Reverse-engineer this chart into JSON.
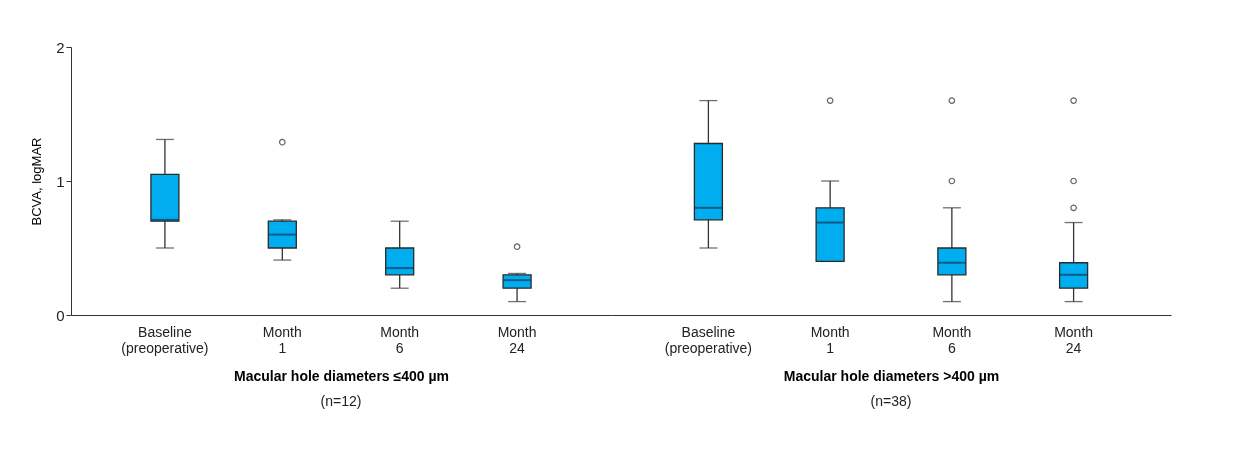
{
  "chart_data": [
    {
      "type": "box",
      "xlabel": "Macular hole diameters ≤400 µm",
      "ylabel": "BCVA, logMAR",
      "annotations": [
        "(n=12)"
      ],
      "categories": [
        "Baseline (preoperative)",
        "Month 1",
        "Month 6",
        "Month 24"
      ],
      "ylim": [
        0,
        2
      ],
      "yticks": [
        0,
        1,
        2
      ],
      "grid": false,
      "series": [
        {
          "color": "#00aeef",
          "boxes": [
            {
              "low": 0.5,
              "q1": 0.7,
              "median": 0.71,
              "q3": 1.05,
              "high": 1.31
            },
            {
              "low": 0.41,
              "q1": 0.5,
              "median": 0.6,
              "q3": 0.7,
              "high": 0.71,
              "outliers": [
                1.29
              ]
            },
            {
              "low": 0.2,
              "q1": 0.3,
              "median": 0.35,
              "q3": 0.5,
              "high": 0.7
            },
            {
              "low": 0.1,
              "q1": 0.2,
              "median": 0.26,
              "q3": 0.3,
              "high": 0.31,
              "outliers": [
                0.51
              ]
            }
          ]
        }
      ]
    },
    {
      "type": "box",
      "xlabel": "Macular hole diameters >400 µm",
      "annotations": [
        "(n=38)"
      ],
      "categories": [
        "Baseline (preoperative)",
        "Month 1",
        "Month 6",
        "Month 24"
      ],
      "ylim": [
        0,
        2
      ],
      "tick_labels": "x",
      "grid": false,
      "series": [
        {
          "color": "#00aeef",
          "boxes": [
            {
              "low": 0.5,
              "q1": 0.71,
              "median": 0.8,
              "q3": 1.28,
              "high": 1.6
            },
            {
              "low": 0.4,
              "q1": 0.4,
              "median": 0.69,
              "q3": 0.8,
              "high": 1.0,
              "outliers": [
                1.6
              ]
            },
            {
              "low": 0.1,
              "q1": 0.3,
              "median": 0.39,
              "q3": 0.5,
              "high": 0.8,
              "outliers": [
                1.6,
                1.0
              ]
            },
            {
              "low": 0.1,
              "q1": 0.2,
              "median": 0.3,
              "q3": 0.39,
              "high": 0.69,
              "outliers": [
                1.6,
                1.0,
                0.8
              ]
            }
          ]
        }
      ]
    }
  ]
}
